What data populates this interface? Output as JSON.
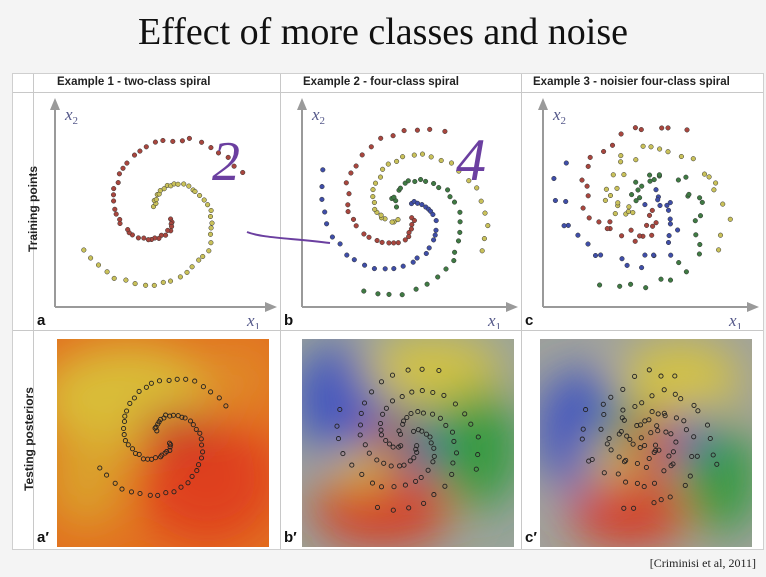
{
  "slide": {
    "title": "Effect of more classes and noise",
    "citation": "[Criminisi et al, 2011]"
  },
  "figure": {
    "columns": [
      "Example 1  -  two-class spiral",
      "Example 2  -  four-class spiral",
      "Example 3  -  noisier four-class spiral"
    ],
    "rows": [
      "Training points",
      "Testing posteriors"
    ],
    "panel_labels": [
      "a",
      "b",
      "c",
      "a′",
      "b′",
      "c′"
    ],
    "axis_x": "x",
    "axis_x_sub": "1",
    "axis_y": "x",
    "axis_y_sub": "2"
  },
  "annotations": {
    "handwritten_1": "2",
    "handwritten_2": "4"
  },
  "colors": {
    "red": "#a8463e",
    "yellow": "#c9c15a",
    "green": "#3f7a43",
    "blue": "#3f4ea8",
    "ink": "#6b3fa0"
  }
}
